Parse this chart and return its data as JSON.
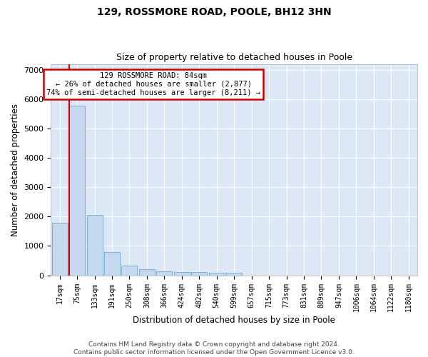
{
  "title": "129, ROSSMORE ROAD, POOLE, BH12 3HN",
  "subtitle": "Size of property relative to detached houses in Poole",
  "xlabel": "Distribution of detached houses by size in Poole",
  "ylabel": "Number of detached properties",
  "bar_labels": [
    "17sqm",
    "75sqm",
    "133sqm",
    "191sqm",
    "250sqm",
    "308sqm",
    "366sqm",
    "424sqm",
    "482sqm",
    "540sqm",
    "599sqm",
    "657sqm",
    "715sqm",
    "773sqm",
    "831sqm",
    "889sqm",
    "947sqm",
    "1006sqm",
    "1064sqm",
    "1122sqm",
    "1180sqm"
  ],
  "bar_values": [
    1780,
    5780,
    2060,
    800,
    340,
    200,
    130,
    110,
    100,
    90,
    80,
    0,
    0,
    0,
    0,
    0,
    0,
    0,
    0,
    0,
    0
  ],
  "bar_color": "#c5d8ee",
  "bar_edgecolor": "#7bafd4",
  "property_line_x": 0.55,
  "annotation_text": "129 ROSSMORE ROAD: 84sqm\n← 26% of detached houses are smaller (2,877)\n74% of semi-detached houses are larger (8,211) →",
  "annotation_box_color": "#ffffff",
  "annotation_box_edgecolor": "#cc0000",
  "vline_color": "#cc0000",
  "ylim": [
    0,
    7200
  ],
  "yticks": [
    0,
    1000,
    2000,
    3000,
    4000,
    5000,
    6000,
    7000
  ],
  "footer_line1": "Contains HM Land Registry data © Crown copyright and database right 2024.",
  "footer_line2": "Contains public sector information licensed under the Open Government Licence v3.0.",
  "plot_background": "#dce8f5",
  "grid_color": "#ffffff",
  "title_fontsize": 10,
  "subtitle_fontsize": 9,
  "axis_label_fontsize": 8.5,
  "tick_fontsize": 7,
  "footer_fontsize": 6.5
}
